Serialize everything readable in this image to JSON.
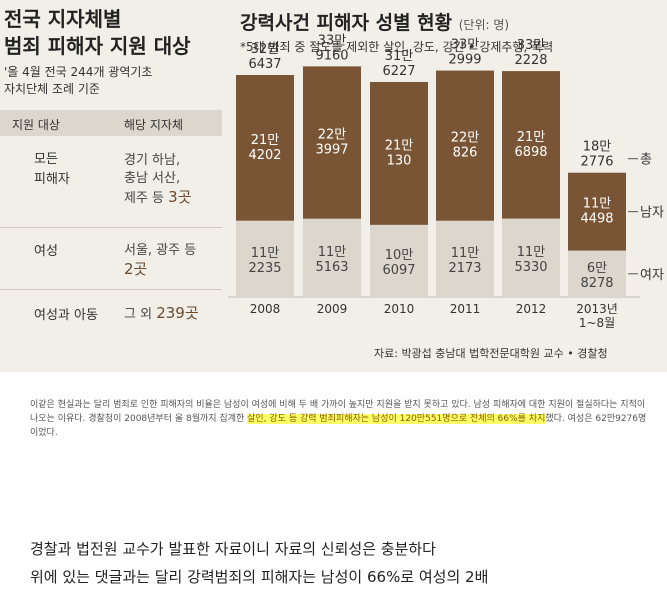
{
  "left": {
    "title_line1": "전국 지자체별",
    "title_line2": "범죄 피해자 지원 대상",
    "sub_line1": "'올 4월 전국 244개 광역기초",
    "sub_line2": "자치단체 조례 기준",
    "table": {
      "header_target": "지원 대상",
      "header_region": "해당 지자체",
      "rows": [
        {
          "target_l1": "모든",
          "target_l2": "피해자",
          "region_l1": "경기 하남,",
          "region_l2": "충남 서산,",
          "region_l3": "제주 등",
          "region_count": "3곳"
        },
        {
          "target_l1": "여성",
          "region_l1": "서울, 광주 등",
          "region_count": "2곳"
        },
        {
          "target_l1": "여성과 아동",
          "region_l1": "그 외",
          "region_count": "239곳"
        }
      ]
    }
  },
  "right": {
    "title": "강력사건 피해자 성별 현황",
    "unit": "(단위: 명)",
    "note": "*5대 범죄 중 절도를 제외한 살인, 강도, 강간 • 강제추행, 폭력",
    "source": "자료: 박광섭 충남대 법학전문대학원 교수 • 경찰청"
  },
  "chart_data": {
    "type": "bar",
    "stacked": true,
    "categories": [
      "2008",
      "2009",
      "2010",
      "2011",
      "2012",
      "2013년 1~8월"
    ],
    "series": [
      {
        "name": "여자",
        "values": [
          112235,
          115163,
          106097,
          112173,
          115330,
          68278
        ],
        "labels": [
          [
            "11만",
            "2235"
          ],
          [
            "11만",
            "5163"
          ],
          [
            "10만",
            "6097"
          ],
          [
            "11만",
            "2173"
          ],
          [
            "11만",
            "5330"
          ],
          [
            "6만",
            "8278"
          ]
        ],
        "color": "#dcd6cc"
      },
      {
        "name": "남자",
        "values": [
          214202,
          223997,
          210130,
          220826,
          216898,
          114498
        ],
        "labels": [
          [
            "21만",
            "4202"
          ],
          [
            "22만",
            "3997"
          ],
          [
            "21만",
            "130"
          ],
          [
            "22만",
            "826"
          ],
          [
            "21만",
            "6898"
          ],
          [
            "11만",
            "4498"
          ]
        ],
        "color": "#7a5535"
      }
    ],
    "totals": {
      "name": "총",
      "values": [
        326437,
        339160,
        316227,
        332999,
        332228,
        182776
      ],
      "labels": [
        [
          "32만",
          "6437"
        ],
        [
          "33만",
          "9160"
        ],
        [
          "31만",
          "6227"
        ],
        [
          "33만",
          "2999"
        ],
        [
          "33만",
          "2228"
        ],
        [
          "18만",
          "2776"
        ]
      ]
    },
    "title": "강력사건 피해자 성별 현황",
    "legend": [
      "총",
      "남자",
      "여자"
    ],
    "legend_position": "right"
  },
  "article": {
    "text_before": "이같은 현실과는 달리 범죄로 인한 피해자의 비율은 남성이 여성에 비해 두 배 가까이 높지만 지원을 받지 못하고 있다. 남성 피해자에 대한 지원이 절실하다는 지적이 나오는 이유다. 경찰청이 2008년부터 올 8월까지 집계한 ",
    "highlight": "살인, 강도 등 강력 범죄피해자는 남성이 120만551명으로 전체의 66%를 차지",
    "text_after": "했다. 여성은 62만9276명이었다."
  },
  "captions": {
    "line1": "경찰과 법전원 교수가 발표한 자료이니 자료의 신뢰성은 충분하다",
    "line2": "위에 있는 댓글과는 달리 강력범죄의 피해자는 남성이 66%로 여성의 2배"
  }
}
